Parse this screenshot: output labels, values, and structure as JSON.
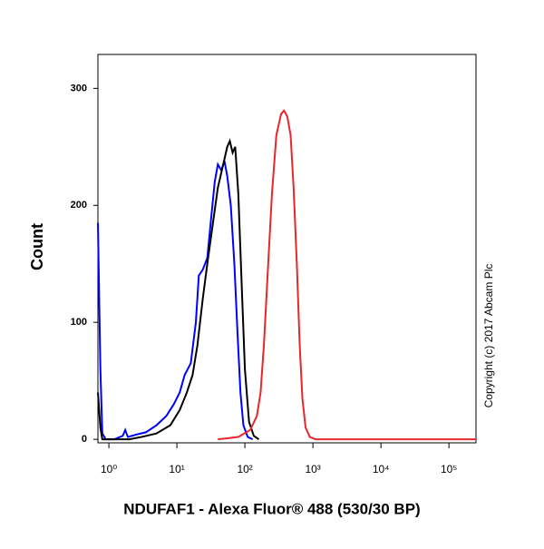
{
  "chart_data": {
    "type": "line",
    "xlabel": "NDUFAF1 - Alexa Fluor® 488 (530/30 BP)",
    "ylabel": "Count",
    "annotation": "Copyright (c) 2017 Abcam Plc",
    "xscale": "log",
    "xlim": [
      0.69,
      250000
    ],
    "ylim": [
      -3,
      329
    ],
    "xticks": [
      {
        "value": 1,
        "label": "10⁰"
      },
      {
        "value": 10,
        "label": "10¹"
      },
      {
        "value": 100,
        "label": "10²"
      },
      {
        "value": 1000,
        "label": "10³"
      },
      {
        "value": 10000,
        "label": "10⁴"
      },
      {
        "value": 100000,
        "label": "10⁵"
      }
    ],
    "yticks": [
      0,
      100,
      200,
      300
    ],
    "grid": false,
    "series": [
      {
        "color": "#0000ff",
        "x": [
          0.69,
          0.75,
          0.8,
          0.9,
          1.2,
          1.6,
          1.74,
          1.9,
          2.5,
          3.5,
          5,
          7,
          9,
          11,
          13,
          16,
          19,
          21,
          24,
          28,
          32,
          36,
          40,
          45,
          50,
          55,
          62,
          70,
          78,
          86,
          95,
          110,
          130
        ],
        "values": [
          185,
          60,
          5,
          0,
          0,
          3,
          8,
          2,
          4,
          6,
          12,
          20,
          30,
          40,
          55,
          65,
          100,
          140,
          145,
          155,
          190,
          220,
          235,
          230,
          238,
          225,
          200,
          150,
          90,
          40,
          12,
          2,
          0
        ]
      },
      {
        "color": "#000000",
        "x": [
          0.69,
          0.75,
          0.8,
          2,
          3,
          5,
          8,
          11,
          14,
          17,
          20,
          24,
          28,
          33,
          40,
          48,
          55,
          60,
          66,
          72,
          80,
          90,
          100,
          115,
          135,
          160
        ],
        "values": [
          40,
          10,
          0,
          0,
          2,
          5,
          12,
          25,
          40,
          55,
          80,
          120,
          150,
          180,
          215,
          235,
          250,
          255,
          245,
          250,
          210,
          130,
          60,
          15,
          3,
          0
        ]
      },
      {
        "color": "#e8262b",
        "x": [
          40,
          80,
          120,
          150,
          170,
          190,
          220,
          250,
          290,
          340,
          375,
          420,
          470,
          520,
          580,
          640,
          700,
          780,
          900,
          1100,
          250000
        ],
        "values": [
          0,
          2,
          8,
          20,
          40,
          80,
          150,
          210,
          260,
          278,
          281,
          276,
          260,
          215,
          150,
          80,
          35,
          10,
          2,
          0,
          0
        ]
      }
    ]
  }
}
